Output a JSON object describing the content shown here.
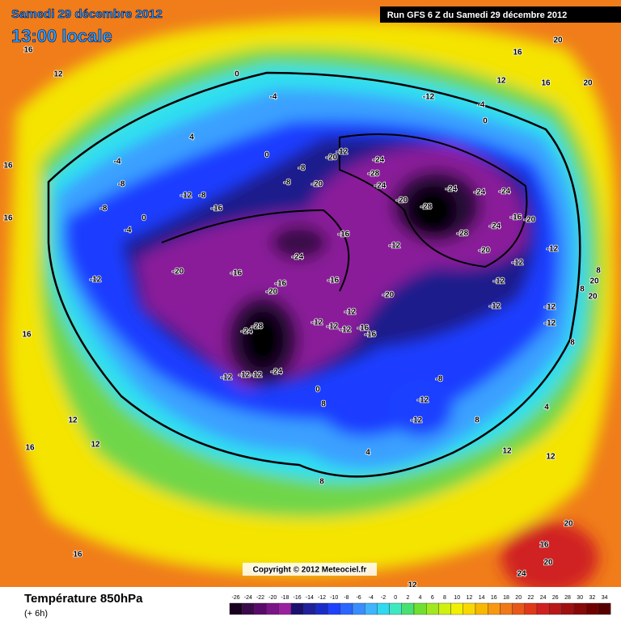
{
  "header": {
    "date": "Samedi 29 décembre 2012",
    "time": "13:00 locale",
    "run": "Run GFS 6 Z du Samedi 29 décembre 2012"
  },
  "footer": {
    "title": "Température 850hPa",
    "lead": "(+ 6h)",
    "copyright": "Copyright © 2012 Meteociel.fr"
  },
  "map": {
    "contour_labels": [
      16,
      12,
      4,
      0,
      -4,
      -12,
      20,
      16,
      12,
      16,
      20,
      0,
      -4,
      -20,
      -12,
      -24,
      -28,
      -24,
      -20,
      -28,
      -24,
      -24,
      -24,
      -28,
      -24,
      -20,
      -16,
      -20,
      -12,
      -12,
      -12,
      -12,
      -12,
      -12,
      -16,
      -12,
      -24,
      -20,
      -16,
      -16,
      -20,
      -16,
      -20,
      -12,
      -12,
      -12,
      -12,
      -16,
      -16,
      -28,
      -24,
      -12,
      -12,
      -12,
      -24,
      0,
      -8,
      -12,
      -12,
      -12,
      -16,
      -20,
      -8,
      -8,
      0,
      -4,
      0,
      -8,
      -12,
      -8,
      -4,
      -8,
      8,
      8,
      20,
      20,
      16,
      16,
      12,
      12,
      16,
      12,
      8,
      4,
      8,
      20,
      16,
      20,
      24,
      8,
      4,
      8,
      12,
      12,
      16,
      16
    ]
  },
  "legend": {
    "ticks": [
      -26,
      -24,
      -22,
      -20,
      -18,
      -16,
      -14,
      -12,
      -10,
      -8,
      -6,
      -4,
      -2,
      0,
      2,
      4,
      6,
      8,
      10,
      12,
      14,
      16,
      18,
      20,
      22,
      24,
      26,
      28,
      30,
      32,
      34
    ],
    "colors": [
      "#1a0020",
      "#3a0a4a",
      "#5a0a6a",
      "#7a1488",
      "#9a20a0",
      "#1a1070",
      "#20209a",
      "#1a2cc8",
      "#1e40ff",
      "#2a66ff",
      "#3a8cff",
      "#40b4ff",
      "#30d8f0",
      "#40e8c0",
      "#48e070",
      "#70e030",
      "#a0e820",
      "#d0f010",
      "#f0f000",
      "#f8d800",
      "#f8b800",
      "#f89810",
      "#f07818",
      "#e85818",
      "#e03818",
      "#d02020",
      "#b81818",
      "#a01010",
      "#880808",
      "#700000",
      "#580000"
    ]
  }
}
